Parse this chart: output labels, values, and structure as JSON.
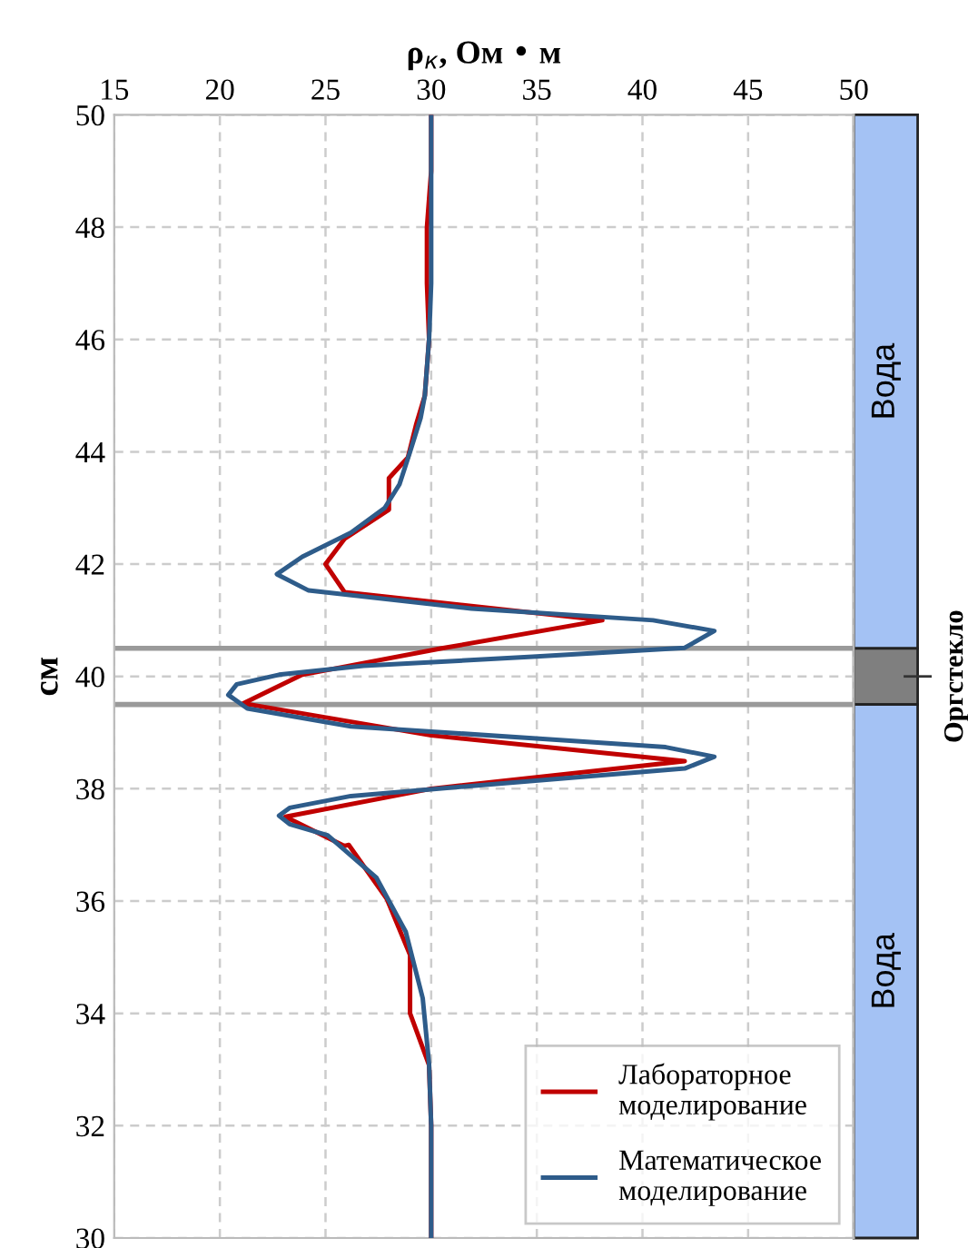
{
  "chart_data": {
    "type": "line",
    "xlabel": "ρ$_{к}$, Ом • м",
    "ylabel": "см",
    "xlim": [
      15,
      50
    ],
    "xticks": [
      15,
      20,
      25,
      30,
      35,
      40,
      45,
      50
    ],
    "ylim": [
      30,
      50
    ],
    "yticks": [
      30,
      32,
      34,
      36,
      38,
      40,
      42,
      44,
      46,
      48,
      50
    ],
    "grid": true,
    "legend": "bottom right",
    "marker": "none",
    "line_style": "solid",
    "series": [
      {
        "name": "Лабораторное\nмоделирование",
        "color": "#c00000",
        "x": [
          30,
          30,
          29.8,
          29.8,
          29.9,
          29.7,
          29.3,
          28.9,
          28.0,
          28.0,
          25.9,
          25.0,
          25.9,
          38.1,
          30.5,
          23.9,
          21.1,
          30,
          42.0,
          30,
          23.1,
          25.9,
          26.1,
          27.9,
          29.0,
          29.0,
          29.9,
          30,
          30
        ],
        "values": [
          50,
          49,
          48,
          47,
          46,
          45,
          44.5,
          43.9,
          43.53,
          42.97,
          42.45,
          42.0,
          41.5,
          41.0,
          40.5,
          40.03,
          39.52,
          38.95,
          38.49,
          38.0,
          37.5,
          36.98,
          37.0,
          36.04,
          35.04,
          34.0,
          33.08,
          32,
          30
        ]
      },
      {
        "name": "Математическое\nмоделирование",
        "color": "#2e5c8a",
        "x": [
          30,
          30,
          29.9,
          29.7,
          29.5,
          29.0,
          28.5,
          27.8,
          26.2,
          23.9,
          22.7,
          24.2,
          31.9,
          40.5,
          43.4,
          42.0,
          34.8,
          26.8,
          22.8,
          20.8,
          20.4,
          21.3,
          26.2,
          34.8,
          41.1,
          43.4,
          42.0,
          34.8,
          26.2,
          23.3,
          22.8,
          23.3,
          25.1,
          27.4,
          28.8,
          29.6,
          29.9,
          30,
          30
        ],
        "values": [
          50,
          47,
          46,
          45,
          44.6,
          44.0,
          43.42,
          43.0,
          42.56,
          42.13,
          41.82,
          41.53,
          41.21,
          41.0,
          40.81,
          40.51,
          40.35,
          40.19,
          40.03,
          39.86,
          39.67,
          39.43,
          39.11,
          38.9,
          38.74,
          38.57,
          38.36,
          38.14,
          37.87,
          37.66,
          37.52,
          37.37,
          37.17,
          36.42,
          35.45,
          34.27,
          33.1,
          32,
          30
        ]
      }
    ],
    "ref_lines": [
      {
        "axis": "y",
        "value": 39.5,
        "color": "#9a9a9a"
      },
      {
        "axis": "y",
        "value": 40.5,
        "color": "#9a9a9a"
      }
    ],
    "annotations": [
      "Вода",
      "Оргстекло",
      "Вода"
    ]
  }
}
